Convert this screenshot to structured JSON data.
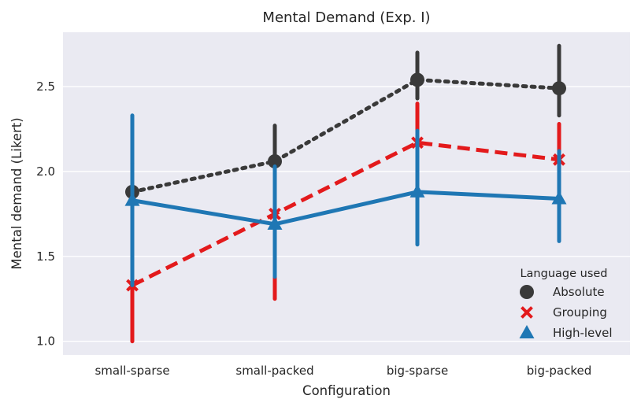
{
  "chart_data": {
    "type": "line",
    "title": "Mental Demand (Exp. I)",
    "xlabel": "Configuration",
    "ylabel": "Mental demand (Likert)",
    "categories": [
      "small-sparse",
      "small-packed",
      "big-sparse",
      "big-packed"
    ],
    "ylim": [
      0.92,
      2.82
    ],
    "yticks": [
      1.0,
      1.5,
      2.0,
      2.5
    ],
    "ytick_labels": [
      "1.0",
      "1.5",
      "2.0",
      "2.5"
    ],
    "grid": true,
    "legend": {
      "title": "Language used",
      "placement": "lower-right"
    },
    "series": [
      {
        "name": "Absolute",
        "color": "#3a3a3a",
        "marker": "circle",
        "linestyle": "dotted",
        "values": [
          1.88,
          2.06,
          2.54,
          2.49
        ],
        "ci_low": [
          1.83,
          1.96,
          2.43,
          2.33
        ],
        "ci_high": [
          2.05,
          2.27,
          2.7,
          2.74
        ]
      },
      {
        "name": "Grouping",
        "color": "#e31a1c",
        "marker": "x",
        "linestyle": "dashed",
        "values": [
          1.33,
          1.75,
          2.17,
          2.07
        ],
        "ci_low": [
          1.0,
          1.25,
          1.97,
          1.78
        ],
        "ci_high": [
          1.79,
          2.0,
          2.4,
          2.28
        ]
      },
      {
        "name": "High-level",
        "color": "#1f77b4",
        "marker": "triangle",
        "linestyle": "solid",
        "values": [
          1.83,
          1.69,
          1.88,
          1.84
        ],
        "ci_low": [
          1.33,
          1.38,
          1.57,
          1.59
        ],
        "ci_high": [
          2.33,
          2.03,
          2.24,
          2.12
        ]
      }
    ]
  }
}
